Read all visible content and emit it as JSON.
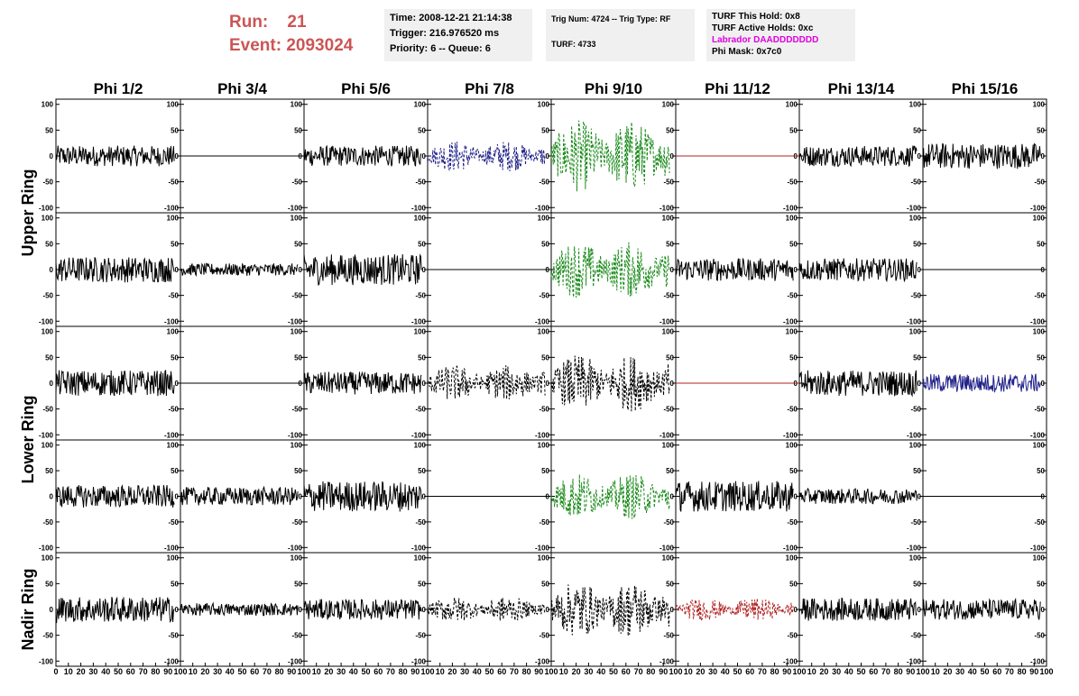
{
  "header": {
    "run_label": "Run:",
    "run_value": "21",
    "event_label": "Event:",
    "event_value": "2093024",
    "box1": [
      "Time: 2008-12-21 21:14:38",
      "Trigger: 216.976520 ms",
      "Priority: 6 -- Queue: 6"
    ],
    "box2": [
      "Trig Num: 4724 -- Trig Type: RF",
      "",
      "TURF: 4733"
    ],
    "box3": [
      "TURF This Hold: 0x8",
      "TURF Active Holds: 0xc",
      "Labrador DAADDDDDDD",
      "Phi Mask: 0x7c0"
    ]
  },
  "colors": {
    "run_text": "#cc5555",
    "labrador_text": "#e000e0",
    "black": "#000000",
    "blue": "#22228a",
    "green": "#1a8a1a",
    "red": "#b02020"
  },
  "chart_data": {
    "type": "line",
    "columns": [
      "Phi 1/2",
      "Phi 3/4",
      "Phi 5/6",
      "Phi 7/8",
      "Phi 9/10",
      "Phi 11/12",
      "Phi 13/14",
      "Phi 15/16"
    ],
    "ring_labels": [
      {
        "label": "Upper Ring",
        "rows": [
          0,
          1
        ]
      },
      {
        "label": "Lower Ring",
        "rows": [
          2,
          3
        ]
      },
      {
        "label": "Nadir Ring",
        "rows": [
          4,
          4
        ]
      }
    ],
    "x_range": [
      0,
      100
    ],
    "y_range": [
      -110,
      110
    ],
    "y_ticks": [
      100,
      50,
      0,
      -50,
      -100
    ],
    "x_ticks": [
      0,
      10,
      20,
      30,
      40,
      50,
      60,
      70,
      80,
      90,
      100
    ],
    "panels": [
      [
        {
          "style": "noise",
          "color": "black",
          "amp": 20
        },
        {
          "style": "flat",
          "color": "black",
          "amp": 0
        },
        {
          "style": "noise",
          "color": "black",
          "amp": 20
        },
        {
          "style": "dashed",
          "color": "blue",
          "amp": 30
        },
        {
          "style": "dashed",
          "color": "green",
          "amp": 70
        },
        {
          "style": "flat",
          "color": "red",
          "amp": 0
        },
        {
          "style": "noise",
          "color": "black",
          "amp": 20
        },
        {
          "style": "noise",
          "color": "black",
          "amp": 25
        }
      ],
      [
        {
          "style": "noise",
          "color": "black",
          "amp": 25
        },
        {
          "style": "noise",
          "color": "black",
          "amp": 12
        },
        {
          "style": "noise",
          "color": "black",
          "amp": 30
        },
        {
          "style": "flat",
          "color": "black",
          "amp": 0
        },
        {
          "style": "dashed",
          "color": "green",
          "amp": 55
        },
        {
          "style": "noise",
          "color": "black",
          "amp": 22
        },
        {
          "style": "noise",
          "color": "black",
          "amp": 22
        },
        {
          "style": "flat",
          "color": "black",
          "amp": 0
        }
      ],
      [
        {
          "style": "noise",
          "color": "black",
          "amp": 25
        },
        {
          "style": "flat",
          "color": "black",
          "amp": 0
        },
        {
          "style": "noise",
          "color": "black",
          "amp": 22
        },
        {
          "style": "dashed",
          "color": "black",
          "amp": 35
        },
        {
          "style": "dashed",
          "color": "black",
          "amp": 55
        },
        {
          "style": "flat",
          "color": "red",
          "amp": 0
        },
        {
          "style": "noise",
          "color": "black",
          "amp": 25
        },
        {
          "style": "noise",
          "color": "blue",
          "amp": 18
        }
      ],
      [
        {
          "style": "noise",
          "color": "black",
          "amp": 22
        },
        {
          "style": "noise",
          "color": "black",
          "amp": 18
        },
        {
          "style": "noise",
          "color": "black",
          "amp": 30
        },
        {
          "style": "flat",
          "color": "black",
          "amp": 0
        },
        {
          "style": "dashed",
          "color": "green",
          "amp": 45
        },
        {
          "style": "noise",
          "color": "black",
          "amp": 30
        },
        {
          "style": "noise",
          "color": "black",
          "amp": 15
        },
        {
          "style": "flat",
          "color": "black",
          "amp": 0
        }
      ],
      [
        {
          "style": "noise",
          "color": "black",
          "amp": 25
        },
        {
          "style": "noise",
          "color": "black",
          "amp": 12
        },
        {
          "style": "noise",
          "color": "black",
          "amp": 20
        },
        {
          "style": "dashed",
          "color": "black",
          "amp": 25
        },
        {
          "style": "dashed",
          "color": "black",
          "amp": 55
        },
        {
          "style": "dashed",
          "color": "red",
          "amp": 22
        },
        {
          "style": "noise",
          "color": "black",
          "amp": 22
        },
        {
          "style": "noise",
          "color": "black",
          "amp": 20
        }
      ]
    ]
  }
}
